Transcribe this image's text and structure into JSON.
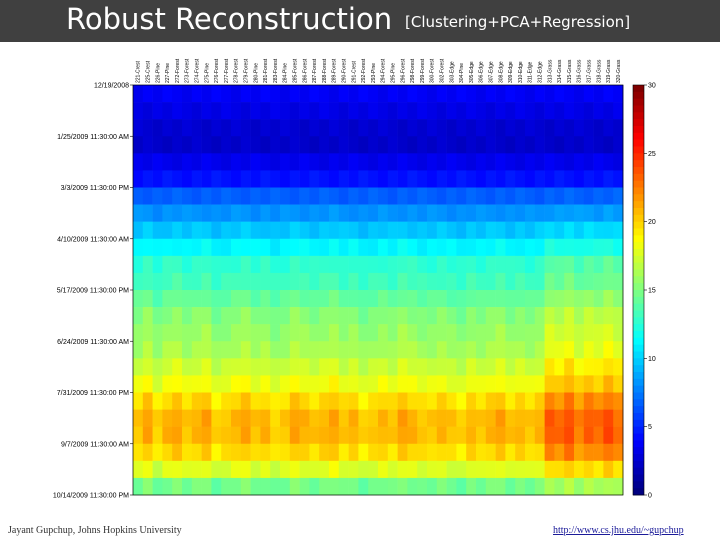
{
  "header": {
    "title": "Robust Reconstruction",
    "subtitle": "[Clustering+PCA+Regression]"
  },
  "footer": {
    "author": "Jayant Gupchup, Johns Hopkins University",
    "url": "http://www.cs.jhu.edu/~gupchup"
  },
  "chart_data": {
    "type": "heatmap",
    "title": "",
    "y_tick_labels": [
      "12/19/2008",
      "1/25/2009 11:30:00 AM",
      "3/3/2009 11:30:00 PM",
      "4/10/2009 11:30:00 AM",
      "5/17/2009 11:30:00 PM",
      "6/24/2009 11:30:00 AM",
      "7/31/2009 11:30:00 PM",
      "9/7/2009 11:30:00 AM",
      "10/14/2009 11:30:00 PM"
    ],
    "x_column_labels": [
      "221-Crest",
      "225-Crest",
      "226-Pine",
      "227-Pine",
      "272-Forest",
      "273-Forest",
      "274-Forest",
      "275-Pine",
      "276-Forest",
      "277-Forest",
      "278-Forest",
      "279-Forest",
      "280-Pine",
      "281-Forest",
      "283-Forest",
      "284-Pine",
      "285-Forest",
      "286-Forest",
      "287-Forest",
      "288-Forest",
      "289-Forest",
      "290-Forest",
      "291-Crest",
      "292-Forest",
      "293-Pine",
      "294-Forest",
      "295-Pine",
      "296-Forest",
      "298-Forest",
      "299-Forest",
      "300-Forest",
      "302-Forest",
      "303-Edge",
      "304-Pine",
      "305-Edge",
      "306-Edge",
      "307-Edge",
      "308-Edge",
      "309-Edge",
      "310-Edge",
      "311-Edge",
      "312-Edge",
      "313-Grass",
      "314-Grass",
      "315-Grass",
      "316-Grass",
      "317-Grass",
      "318-Grass",
      "319-Grass",
      "320-Grass"
    ],
    "row_profile": [
      3.5,
      3.0,
      2.4,
      2.2,
      3.2,
      4.2,
      6.5,
      8.0,
      9.5,
      11.0,
      12.5,
      13.0,
      14.0,
      15.0,
      15.5,
      16.0,
      17.0,
      18.0,
      19.5,
      20.5,
      20.5,
      19.5,
      17.5,
      14.5
    ],
    "column_offsets": [
      0,
      1,
      -0.5,
      0.5,
      1,
      0,
      0.5,
      1,
      -0.5,
      0,
      0.5,
      1,
      0,
      0.5,
      -0.5,
      0,
      1,
      0.5,
      0,
      0.5,
      1,
      0,
      0.5,
      -0.5,
      0,
      0.5,
      0,
      1,
      0.5,
      0,
      0,
      0.5,
      0,
      -0.5,
      0.5,
      0,
      0.5,
      1,
      0,
      0.5,
      0,
      0.5,
      3,
      2.5,
      3.5,
      2,
      3,
      2.5,
      3.5,
      2.5
    ],
    "colorbar": {
      "min": 0,
      "max": 30,
      "ticks": [
        "0",
        "5",
        "10",
        "15",
        "20",
        "25",
        "30"
      ],
      "colormap": "jet"
    }
  }
}
